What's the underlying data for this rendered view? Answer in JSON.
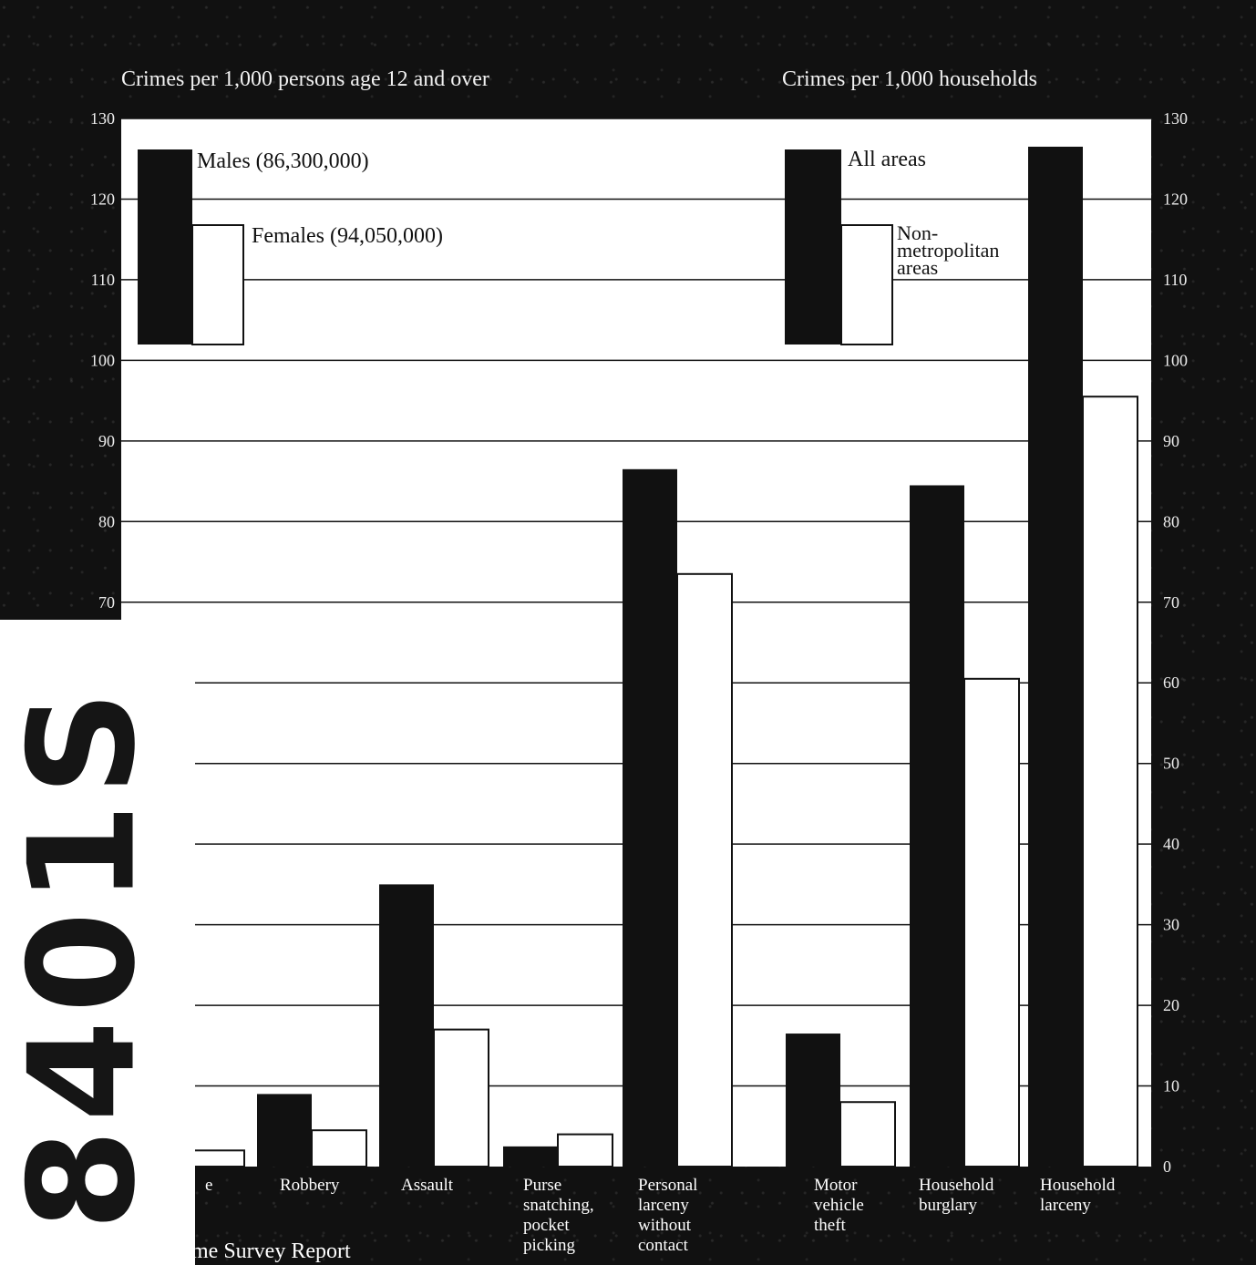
{
  "chart_data": {
    "type": "bar",
    "left_axis_title": "Crimes per 1,000 persons age 12 and over",
    "right_axis_title": "Crimes per 1,000 households",
    "ylim": [
      0,
      130
    ],
    "left_ticks": [
      "130",
      "120",
      "110",
      "100",
      "90",
      "80",
      "70"
    ],
    "right_ticks": [
      "130",
      "120",
      "110",
      "100",
      "90",
      "80",
      "70",
      "60",
      "50",
      "40",
      "30",
      "20",
      "10",
      "0"
    ],
    "grid": true,
    "legend_left": [
      {
        "label": "Males (86,300,000)",
        "color": "#111111"
      },
      {
        "label": "Females (94,050,000)",
        "color": "#ffffff"
      }
    ],
    "legend_right": [
      {
        "label": "All areas",
        "color": "#111111"
      },
      {
        "label_lines": [
          "Non-",
          "metropolitan",
          "areas"
        ],
        "color": "#ffffff"
      }
    ],
    "groups": [
      {
        "label_lines": [
          "e"
        ],
        "values": [
          1,
          2
        ]
      },
      {
        "label_lines": [
          "Robbery"
        ],
        "values": [
          9,
          4.5
        ]
      },
      {
        "label_lines": [
          "Assault"
        ],
        "values": [
          35,
          17
        ]
      },
      {
        "label_lines": [
          "Purse",
          "snatching,",
          "pocket",
          "picking"
        ],
        "values": [
          2.5,
          4
        ]
      },
      {
        "label_lines": [
          "Personal",
          "larceny",
          "without",
          "contact"
        ],
        "values": [
          86.5,
          73.5
        ]
      },
      {
        "label_lines": [
          "Motor",
          "vehicle",
          "theft"
        ],
        "values": [
          16.5,
          8
        ]
      },
      {
        "label_lines": [
          "Household",
          "burglary"
        ],
        "values": [
          84.5,
          60.5
        ]
      },
      {
        "label_lines": [
          "Household",
          "larceny"
        ],
        "values": [
          126.5,
          95.5
        ]
      }
    ]
  },
  "stamp": "8401S",
  "footer": "me Survey Report"
}
